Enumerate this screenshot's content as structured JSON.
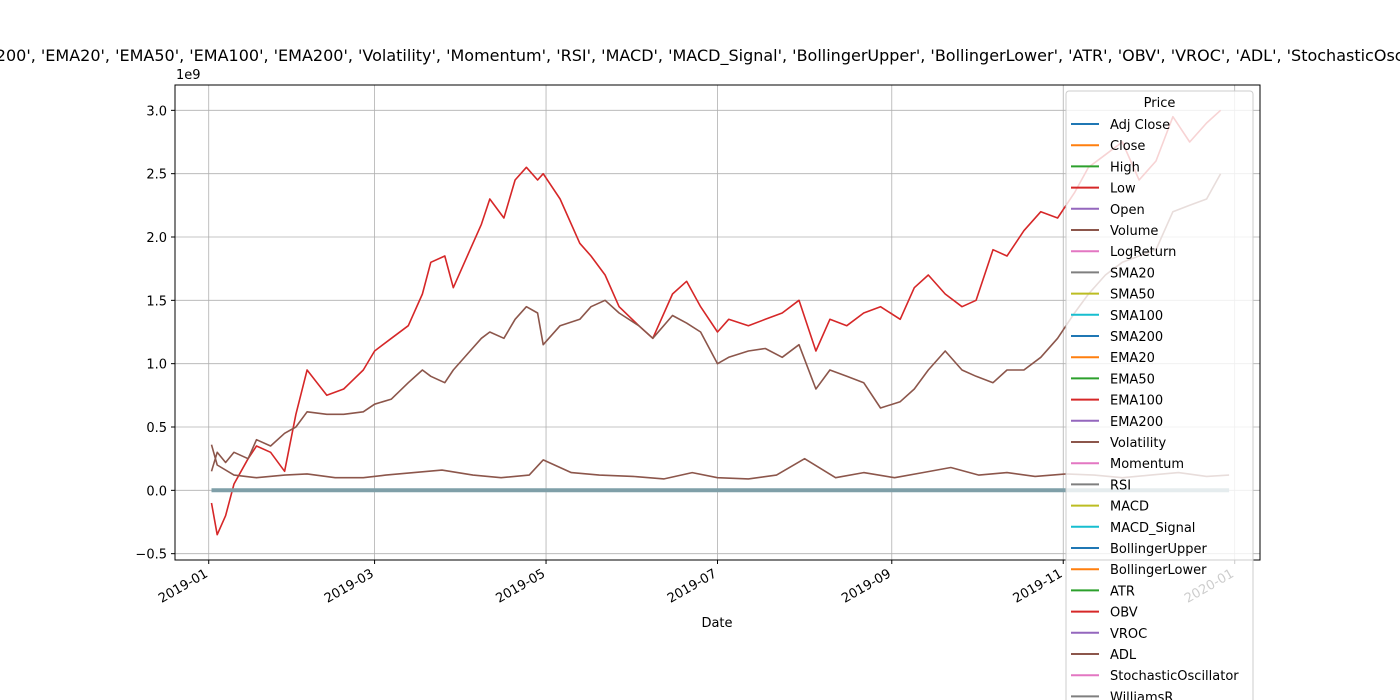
{
  "chart_data": {
    "type": "line",
    "title": "Index(['Adj Close', 'Close', 'High', 'Low', 'Open', 'Volume', 'LogReturn', 'SMA20', 'SMA50', 'SMA100', 'SMA200', 'EMA20', 'EMA50', 'EMA100', 'EMA200', 'Volatility', 'Momentum', 'RSI', 'MACD', 'MACD_Signal', 'BollingerUpper', 'BollingerLower', 'ATR', 'OBV', 'VROC', 'ADL', 'StochasticOscillator', 'WilliamsR', 'CMF', 'CCI', 'EMACrossover', 'ATRUpper', 'ATRLower'], dtype='object', name='Price')",
    "xlabel": "Date",
    "ylabel": "",
    "y_offset_label": "1e9",
    "ylim": [
      -0.55,
      3.2
    ],
    "xlim": [
      "2018-12-20",
      "2020-01-10"
    ],
    "grid": true,
    "y_ticks": [
      -0.5,
      0.0,
      0.5,
      1.0,
      1.5,
      2.0,
      2.5,
      3.0
    ],
    "y_tick_labels": [
      "−0.5",
      "0.0",
      "0.5",
      "1.0",
      "1.5",
      "2.0",
      "2.5",
      "3.0"
    ],
    "x_ticks": [
      "2019-01-01",
      "2019-03-01",
      "2019-05-01",
      "2019-07-01",
      "2019-09-01",
      "2019-11-01",
      "2020-01-01"
    ],
    "x_tick_labels": [
      "2019-01",
      "2019-03",
      "2019-05",
      "2019-07",
      "2019-09",
      "2019-11",
      "2020-01"
    ],
    "legend": {
      "title": "Price",
      "placement": "upper right",
      "entries": [
        {
          "name": "Adj Close",
          "color": "#1f77b4"
        },
        {
          "name": "Close",
          "color": "#ff7f0e"
        },
        {
          "name": "High",
          "color": "#2ca02c"
        },
        {
          "name": "Low",
          "color": "#d62728"
        },
        {
          "name": "Open",
          "color": "#9467bd"
        },
        {
          "name": "Volume",
          "color": "#8c564b"
        },
        {
          "name": "LogReturn",
          "color": "#e377c2"
        },
        {
          "name": "SMA20",
          "color": "#7f7f7f"
        },
        {
          "name": "SMA50",
          "color": "#bcbd22"
        },
        {
          "name": "SMA100",
          "color": "#17becf"
        },
        {
          "name": "SMA200",
          "color": "#1f77b4"
        },
        {
          "name": "EMA20",
          "color": "#ff7f0e"
        },
        {
          "name": "EMA50",
          "color": "#2ca02c"
        },
        {
          "name": "EMA100",
          "color": "#d62728"
        },
        {
          "name": "EMA200",
          "color": "#9467bd"
        },
        {
          "name": "Volatility",
          "color": "#8c564b"
        },
        {
          "name": "Momentum",
          "color": "#e377c2"
        },
        {
          "name": "RSI",
          "color": "#7f7f7f"
        },
        {
          "name": "MACD",
          "color": "#bcbd22"
        },
        {
          "name": "MACD_Signal",
          "color": "#17becf"
        },
        {
          "name": "BollingerUpper",
          "color": "#1f77b4"
        },
        {
          "name": "BollingerLower",
          "color": "#ff7f0e"
        },
        {
          "name": "ATR",
          "color": "#2ca02c"
        },
        {
          "name": "OBV",
          "color": "#d62728"
        },
        {
          "name": "VROC",
          "color": "#9467bd"
        },
        {
          "name": "ADL",
          "color": "#8c564b"
        },
        {
          "name": "StochasticOscillator",
          "color": "#e377c2"
        },
        {
          "name": "WilliamsR",
          "color": "#7f7f7f"
        }
      ]
    },
    "series": [
      {
        "name": "OBV",
        "color": "#d62728",
        "x": [
          "2019-01-02",
          "2019-01-04",
          "2019-01-07",
          "2019-01-10",
          "2019-01-15",
          "2019-01-18",
          "2019-01-23",
          "2019-01-28",
          "2019-02-01",
          "2019-02-05",
          "2019-02-12",
          "2019-02-18",
          "2019-02-25",
          "2019-03-01",
          "2019-03-07",
          "2019-03-13",
          "2019-03-18",
          "2019-03-21",
          "2019-03-26",
          "2019-03-29",
          "2019-04-04",
          "2019-04-08",
          "2019-04-11",
          "2019-04-16",
          "2019-04-20",
          "2019-04-24",
          "2019-04-28",
          "2019-04-30",
          "2019-05-06",
          "2019-05-13",
          "2019-05-17",
          "2019-05-22",
          "2019-05-27",
          "2019-06-03",
          "2019-06-08",
          "2019-06-15",
          "2019-06-20",
          "2019-06-25",
          "2019-07-01",
          "2019-07-05",
          "2019-07-12",
          "2019-07-18",
          "2019-07-24",
          "2019-07-30",
          "2019-08-05",
          "2019-08-10",
          "2019-08-16",
          "2019-08-22",
          "2019-08-28",
          "2019-09-04",
          "2019-09-09",
          "2019-09-14",
          "2019-09-20",
          "2019-09-26",
          "2019-10-01",
          "2019-10-07",
          "2019-10-12",
          "2019-10-18",
          "2019-10-24",
          "2019-10-30",
          "2019-11-05",
          "2019-11-10",
          "2019-11-16",
          "2019-11-22",
          "2019-11-28",
          "2019-12-04",
          "2019-12-10",
          "2019-12-16",
          "2019-12-22",
          "2019-12-27"
        ],
        "values": [
          -0.1,
          -0.35,
          -0.2,
          0.05,
          0.25,
          0.35,
          0.3,
          0.15,
          0.6,
          0.95,
          0.75,
          0.8,
          0.95,
          1.1,
          1.2,
          1.3,
          1.55,
          1.8,
          1.85,
          1.6,
          1.9,
          2.1,
          2.3,
          2.15,
          2.45,
          2.55,
          2.45,
          2.5,
          2.3,
          1.95,
          1.85,
          1.7,
          1.45,
          1.3,
          1.2,
          1.55,
          1.65,
          1.45,
          1.25,
          1.35,
          1.3,
          1.35,
          1.4,
          1.5,
          1.1,
          1.35,
          1.3,
          1.4,
          1.45,
          1.35,
          1.6,
          1.7,
          1.55,
          1.45,
          1.5,
          1.9,
          1.85,
          2.05,
          2.2,
          2.15,
          2.35,
          2.55,
          2.65,
          2.75,
          2.45,
          2.6,
          2.95,
          2.75,
          2.9,
          3.0
        ]
      },
      {
        "name": "ADL",
        "color": "#8c564b",
        "x": [
          "2019-01-02",
          "2019-01-04",
          "2019-01-07",
          "2019-01-10",
          "2019-01-15",
          "2019-01-18",
          "2019-01-23",
          "2019-01-28",
          "2019-02-01",
          "2019-02-05",
          "2019-02-12",
          "2019-02-18",
          "2019-02-25",
          "2019-03-01",
          "2019-03-07",
          "2019-03-13",
          "2019-03-18",
          "2019-03-21",
          "2019-03-26",
          "2019-03-29",
          "2019-04-04",
          "2019-04-08",
          "2019-04-11",
          "2019-04-16",
          "2019-04-20",
          "2019-04-24",
          "2019-04-28",
          "2019-04-30",
          "2019-05-06",
          "2019-05-13",
          "2019-05-17",
          "2019-05-22",
          "2019-05-27",
          "2019-06-03",
          "2019-06-08",
          "2019-06-15",
          "2019-06-20",
          "2019-06-25",
          "2019-07-01",
          "2019-07-05",
          "2019-07-12",
          "2019-07-18",
          "2019-07-24",
          "2019-07-30",
          "2019-08-05",
          "2019-08-10",
          "2019-08-16",
          "2019-08-22",
          "2019-08-28",
          "2019-09-04",
          "2019-09-09",
          "2019-09-14",
          "2019-09-20",
          "2019-09-26",
          "2019-10-01",
          "2019-10-07",
          "2019-10-12",
          "2019-10-18",
          "2019-10-24",
          "2019-10-30",
          "2019-11-05",
          "2019-11-10",
          "2019-11-16",
          "2019-11-22",
          "2019-11-28",
          "2019-12-04",
          "2019-12-10",
          "2019-12-16",
          "2019-12-22",
          "2019-12-27"
        ],
        "values": [
          0.15,
          0.3,
          0.22,
          0.3,
          0.25,
          0.4,
          0.35,
          0.45,
          0.5,
          0.62,
          0.6,
          0.6,
          0.62,
          0.68,
          0.72,
          0.85,
          0.95,
          0.9,
          0.85,
          0.95,
          1.1,
          1.2,
          1.25,
          1.2,
          1.35,
          1.45,
          1.4,
          1.15,
          1.3,
          1.35,
          1.45,
          1.5,
          1.4,
          1.3,
          1.2,
          1.38,
          1.32,
          1.25,
          1.0,
          1.05,
          1.1,
          1.12,
          1.05,
          1.15,
          0.8,
          0.95,
          0.9,
          0.85,
          0.65,
          0.7,
          0.8,
          0.95,
          1.1,
          0.95,
          0.9,
          0.85,
          0.95,
          0.95,
          1.05,
          1.2,
          1.4,
          1.55,
          1.7,
          1.8,
          1.85,
          1.9,
          2.2,
          2.25,
          2.3,
          2.5
        ]
      },
      {
        "name": "Volume",
        "color": "#8c564b",
        "x": [
          "2019-01-02",
          "2019-01-04",
          "2019-01-10",
          "2019-01-18",
          "2019-01-28",
          "2019-02-05",
          "2019-02-15",
          "2019-02-25",
          "2019-03-05",
          "2019-03-15",
          "2019-03-25",
          "2019-04-05",
          "2019-04-15",
          "2019-04-25",
          "2019-04-30",
          "2019-05-10",
          "2019-05-20",
          "2019-06-01",
          "2019-06-12",
          "2019-06-22",
          "2019-07-01",
          "2019-07-12",
          "2019-07-22",
          "2019-08-01",
          "2019-08-12",
          "2019-08-22",
          "2019-09-02",
          "2019-09-12",
          "2019-09-22",
          "2019-10-02",
          "2019-10-12",
          "2019-10-22",
          "2019-11-02",
          "2019-11-12",
          "2019-11-22",
          "2019-12-02",
          "2019-12-12",
          "2019-12-22",
          "2019-12-30"
        ],
        "values": [
          0.36,
          0.2,
          0.12,
          0.1,
          0.12,
          0.13,
          0.1,
          0.1,
          0.12,
          0.14,
          0.16,
          0.12,
          0.1,
          0.12,
          0.24,
          0.14,
          0.12,
          0.11,
          0.09,
          0.14,
          0.1,
          0.09,
          0.12,
          0.25,
          0.1,
          0.14,
          0.1,
          0.14,
          0.18,
          0.12,
          0.14,
          0.11,
          0.13,
          0.12,
          0.1,
          0.12,
          0.14,
          0.11,
          0.12
        ]
      },
      {
        "name": "Adj Close",
        "color": "#7f9fa8",
        "x": [
          "2019-01-02",
          "2019-12-30"
        ],
        "values": [
          0.0,
          0.0
        ]
      }
    ]
  }
}
